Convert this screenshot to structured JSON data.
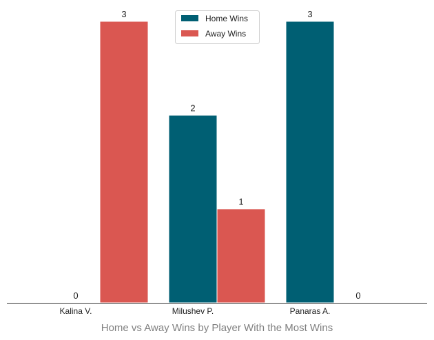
{
  "chart_data": {
    "type": "bar",
    "title": "",
    "xlabel": "Home vs Away Wins by Player With the Most Wins",
    "ylabel": "",
    "categories": [
      "Kalina V.",
      "Milushev P.",
      "Panaras A."
    ],
    "series": [
      {
        "name": "Home Wins",
        "color": "#005f73",
        "values": [
          0,
          2,
          3
        ]
      },
      {
        "name": "Away Wins",
        "color": "#da5751",
        "values": [
          3,
          1,
          0
        ]
      }
    ],
    "ylim": [
      0,
      3
    ],
    "grid": false,
    "legend": "top-center",
    "data_labels": true
  }
}
